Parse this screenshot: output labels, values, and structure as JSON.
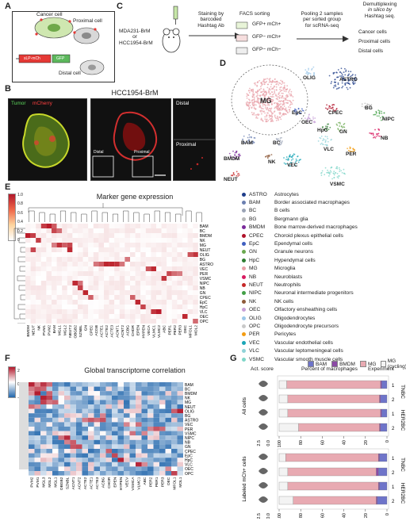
{
  "panels": {
    "a": "A",
    "b": "B",
    "c": "C",
    "d": "D",
    "e": "E",
    "f": "F",
    "g": "G"
  },
  "panelA": {
    "cancer_cell": "Cancer cell",
    "proximal_cell": "Proximal cell",
    "distal_cell": "Distal cell",
    "construct1": "sLP-mCh",
    "construct2": "GFP"
  },
  "panelB": {
    "title": "HCC1954-BrM",
    "legend_tumor": "Tumor",
    "legend_mcherry": "mCherry",
    "label_distal_inset": "Distal",
    "label_proximal_inset": "Proximal",
    "label_distal_box": "Distal",
    "label_proximal_box": "Proximal"
  },
  "panelC": {
    "lines": [
      "MDA231-BrM",
      "or",
      "HCC1954-BrM"
    ],
    "step1": [
      "Staining by",
      "barcoded",
      "Hashtag Ab"
    ],
    "step2": "FACS sorting",
    "step3": [
      "Pooling 2 samples",
      "per sorted group",
      "for scRNA-seq"
    ],
    "step4": [
      "Demultiplexing",
      "in silico by",
      "Hashtag seq."
    ],
    "gates": [
      "GFP+ mCh+",
      "GFP− mCh+",
      "GFP− mCh−"
    ],
    "outputs": [
      "Cancer cells",
      "Proximal cells",
      "Distal cells"
    ]
  },
  "panelD": {
    "cluster_labels": [
      "OLIG",
      "ASTRO",
      "MG",
      "EpC",
      "OEC",
      "CPEC",
      "BG",
      "NIPC",
      "HpC",
      "GN",
      "BAM",
      "BC",
      "VLC",
      "NB",
      "BMDM",
      "PER",
      "NK",
      "VEC",
      "NEUT",
      "VSMC"
    ],
    "legend": [
      {
        "abbr": "ASTRO",
        "name": "Astrocytes",
        "color": "#1f3d8a"
      },
      {
        "abbr": "BAM",
        "name": "Border associated macrophages",
        "color": "#6b7fb0"
      },
      {
        "abbr": "BC",
        "name": "B cells",
        "color": "#9aa3b5"
      },
      {
        "abbr": "BG",
        "name": "Bergmann glia",
        "color": "#b8b8b8"
      },
      {
        "abbr": "BMDM",
        "name": "Bone marrow-derived macrophages",
        "color": "#7a2a9a"
      },
      {
        "abbr": "CPEC",
        "name": "Choroid plexus epithelial cells",
        "color": "#b0122a"
      },
      {
        "abbr": "EpC",
        "name": "Ependymal cells",
        "color": "#3f5fc0"
      },
      {
        "abbr": "GN",
        "name": "Granule neurons",
        "color": "#6aa84f"
      },
      {
        "abbr": "HpC",
        "name": "Hypendymal cells",
        "color": "#2e7d32"
      },
      {
        "abbr": "MG",
        "name": "Microglia",
        "color": "#e8a0a8"
      },
      {
        "abbr": "NB",
        "name": "Neuroblasts",
        "color": "#d81b60"
      },
      {
        "abbr": "NEUT",
        "name": "Neutrophils",
        "color": "#c62828"
      },
      {
        "abbr": "NIPC",
        "name": "Neuronal intermediate progenitors",
        "color": "#43a047"
      },
      {
        "abbr": "NK",
        "name": "NK cells",
        "color": "#8e5a3a"
      },
      {
        "abbr": "OEC",
        "name": "Olfactory ensheathing cells",
        "color": "#c7a0d8"
      },
      {
        "abbr": "OLIG",
        "name": "Oligodendrocytes",
        "color": "#9bc7e8"
      },
      {
        "abbr": "OPC",
        "name": "Oligodendrocyte precursors",
        "color": "#c9c9c9"
      },
      {
        "abbr": "PER",
        "name": "Pericytes",
        "color": "#f39c12"
      },
      {
        "abbr": "VEC",
        "name": "Vascular endothelial cells",
        "color": "#1aa6b7"
      },
      {
        "abbr": "VLC",
        "name": "Vascular leptomeningeal cells",
        "color": "#8fd3d8"
      },
      {
        "abbr": "VSMC",
        "name": "Vascular smooth muscle cells",
        "color": "#7fd6c8"
      }
    ]
  },
  "panelE": {
    "title": "Marker gene expression",
    "scale_ticks": [
      "1.0",
      "0.8",
      "0.6",
      "0.4",
      "0.2",
      "0"
    ],
    "rows": [
      "BAM",
      "BC",
      "BMDM",
      "NK",
      "MG",
      "NEUT",
      "OLIG",
      "BG",
      "ASTRO",
      "VEC",
      "PER",
      "VSMC",
      "NIPC",
      "NB",
      "GN",
      "CPEC",
      "EpC",
      "HpC",
      "VLC",
      "OEC",
      "OPC"
    ],
    "cols": [
      "BMDM",
      "NEUT",
      "NK",
      "PVM1",
      "PVM2",
      "BAM",
      "MGL1",
      "MGL2",
      "NEUT2",
      "OBGB2",
      "SZNBL",
      "GN",
      "CPEC",
      "ACGB",
      "ACTE1",
      "ACTE2",
      "ACTE3",
      "ACNT1",
      "ACNT2",
      "ACBG",
      "CHOR",
      "EPEN",
      "HYPEN",
      "VECA",
      "VLMC1",
      "VLMC2",
      "ABC",
      "PER1",
      "PER2",
      "PER3",
      "OEC",
      "MFOL1",
      "MOL2"
    ]
  },
  "panelF": {
    "title": "Global transcriptome correlation",
    "scale_ticks": [
      "2",
      "0",
      "−2"
    ],
    "rows": [
      "BAM",
      "BC",
      "BMDM",
      "NK",
      "MG",
      "NEUT",
      "OLIG",
      "BG",
      "ASTRO",
      "VEC",
      "PER",
      "VSMC",
      "NIPC",
      "NB",
      "GN",
      "CPEC",
      "EpC",
      "HpC",
      "VLC",
      "OEC",
      "OPC"
    ],
    "cols": [
      "PVM2",
      "PVM1",
      "MGL3",
      "MGL2",
      "MGL1",
      "OBGB2",
      "SZNBL",
      "ACNT1",
      "ACNT2",
      "ACTE2",
      "ACTE1",
      "ACTE3",
      "ACBG",
      "CHOR",
      "EPEN",
      "HYPEN",
      "VECV",
      "VSMCA",
      "VLMC1",
      "ABC",
      "PER2",
      "PER1",
      "PER3",
      "OEC",
      "MFOL1",
      "MOL1"
    ]
  },
  "panelG": {
    "legend": [
      {
        "label": "BAM",
        "color": "#6e74c9"
      },
      {
        "label": "BMDM",
        "color": "#8b4aa5"
      },
      {
        "label": "MG",
        "color": "#e8aab2"
      },
      {
        "label": "MG (cycling)",
        "color": "#f3f3f3"
      }
    ],
    "col_headers": {
      "act": "Act. score",
      "pct": "Percent of macrophages",
      "exp": "Experiment"
    },
    "group_labels": [
      "All cells",
      "Labeled mCh+ cells"
    ],
    "exp_labels": [
      "TNBC",
      "HER2BC"
    ],
    "rep_labels": [
      "1",
      "2",
      "1",
      "2"
    ],
    "x_ticks_pct": [
      "100",
      "80",
      "60",
      "40",
      "20",
      "0"
    ],
    "x_ticks_act": [
      "2.5",
      "0.0"
    ],
    "chart_data": [
      {
        "type": "bar",
        "title": "All cells",
        "categories": [
          "TNBC 1",
          "TNBC 2",
          "HER2BC 1",
          "HER2BC 2"
        ],
        "series": [
          {
            "name": "BAM",
            "values": [
              5,
              6,
              5,
              6
            ]
          },
          {
            "name": "BMDM",
            "values": [
              1,
              1,
              1,
              1
            ]
          },
          {
            "name": "MG",
            "values": [
              87,
              85,
              86,
              75
            ]
          },
          {
            "name": "MG (cycling)",
            "values": [
              7,
              8,
              8,
              18
            ]
          }
        ]
      },
      {
        "type": "bar",
        "title": "Labeled mCh+ cells",
        "categories": [
          "TNBC 1",
          "TNBC 2",
          "HER2BC 1",
          "HER2BC 2"
        ],
        "series": [
          {
            "name": "BAM",
            "values": [
              7,
              8,
              7,
              9
            ]
          },
          {
            "name": "BMDM",
            "values": [
              1,
              2,
              1,
              1
            ]
          },
          {
            "name": "MG",
            "values": [
              86,
              82,
              84,
              77
            ]
          },
          {
            "name": "MG (cycling)",
            "values": [
              6,
              8,
              8,
              13
            ]
          }
        ]
      }
    ]
  }
}
